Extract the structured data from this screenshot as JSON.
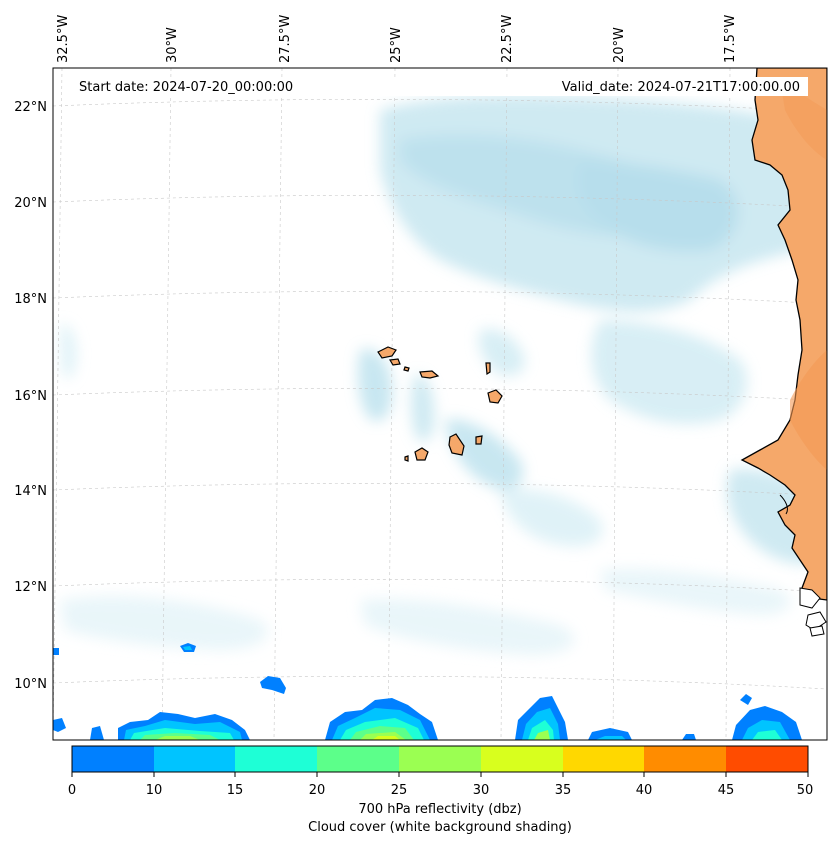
{
  "header": {
    "start_date": "Start date: 2024-07-20_00:00:00",
    "valid_date": "Valid_date: 2024-07-21T17:00:00.00"
  },
  "map": {
    "lon_labels": [
      "32.5°W",
      "30°W",
      "27.5°W",
      "25°W",
      "22.5°W",
      "20°W",
      "17.5°W"
    ],
    "lat_labels": [
      "22°N",
      "20°N",
      "18°N",
      "16°N",
      "14°N",
      "12°N",
      "10°N"
    ],
    "colors": {
      "land": "#f5a86a",
      "coastline": "#000000",
      "cloud": "#bfe3ee",
      "grid": "#c8c8c8"
    }
  },
  "colorbar": {
    "ticks": [
      "0",
      "10",
      "15",
      "20",
      "25",
      "30",
      "35",
      "40",
      "45",
      "50"
    ],
    "colors": [
      "#0080ff",
      "#00c4ff",
      "#1effd6",
      "#5cff8a",
      "#9bff52",
      "#d8ff1e",
      "#ffd800",
      "#ff8c00",
      "#ff4c00"
    ],
    "label_line1": "700 hPa reflectivity (dbz)",
    "label_line2": "Cloud cover (white background shading)"
  }
}
